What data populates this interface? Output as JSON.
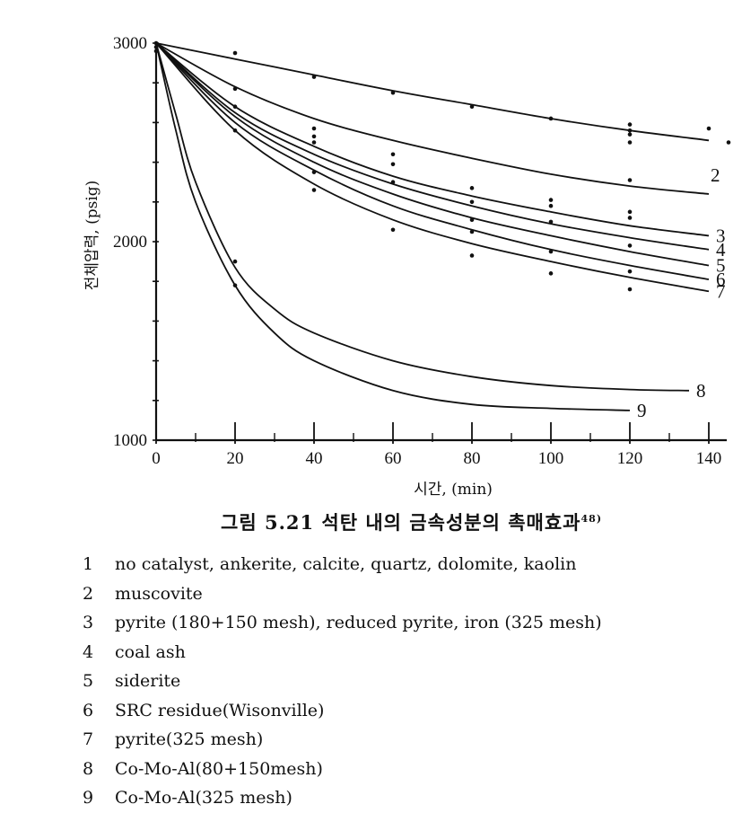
{
  "chart_data": {
    "type": "line",
    "xlabel": "시간, (min)",
    "ylabel": "전체압력, (psig)",
    "x_ticks": [
      0,
      20,
      40,
      60,
      80,
      100,
      120,
      140
    ],
    "y_ticks": [
      1000,
      2000,
      3000
    ],
    "xlim": [
      0,
      145
    ],
    "ylim": [
      1000,
      3000
    ],
    "grid": false,
    "series": [
      {
        "name": "1",
        "x": [
          0,
          20,
          40,
          60,
          80,
          100,
          120,
          140
        ],
        "y": [
          3000,
          2920,
          2840,
          2760,
          2690,
          2620,
          2560,
          2510
        ]
      },
      {
        "name": "2",
        "x": [
          0,
          20,
          40,
          60,
          80,
          100,
          120,
          140
        ],
        "y": [
          3000,
          2780,
          2620,
          2510,
          2420,
          2340,
          2280,
          2240
        ]
      },
      {
        "name": "3",
        "x": [
          0,
          20,
          40,
          60,
          80,
          100,
          120,
          140
        ],
        "y": [
          3000,
          2680,
          2480,
          2330,
          2230,
          2150,
          2080,
          2030
        ]
      },
      {
        "name": "4",
        "x": [
          0,
          20,
          40,
          60,
          80,
          100,
          120,
          140
        ],
        "y": [
          3000,
          2650,
          2440,
          2290,
          2180,
          2090,
          2020,
          1960
        ]
      },
      {
        "name": "5",
        "x": [
          0,
          20,
          40,
          60,
          80,
          100,
          120,
          140
        ],
        "y": [
          3000,
          2630,
          2400,
          2240,
          2120,
          2030,
          1950,
          1880
        ]
      },
      {
        "name": "6",
        "x": [
          0,
          20,
          40,
          60,
          80,
          100,
          120,
          140
        ],
        "y": [
          3000,
          2600,
          2360,
          2180,
          2060,
          1960,
          1880,
          1810
        ]
      },
      {
        "name": "7",
        "x": [
          0,
          20,
          40,
          60,
          80,
          100,
          120,
          140
        ],
        "y": [
          3000,
          2560,
          2290,
          2110,
          1990,
          1900,
          1820,
          1750
        ]
      },
      {
        "name": "8",
        "x": [
          0,
          5,
          10,
          20,
          30,
          40,
          60,
          80,
          100,
          120,
          135
        ],
        "y": [
          3000,
          2640,
          2300,
          1870,
          1660,
          1540,
          1400,
          1320,
          1275,
          1255,
          1250
        ]
      },
      {
        "name": "9",
        "x": [
          0,
          5,
          10,
          20,
          30,
          40,
          60,
          80,
          100,
          120
        ],
        "y": [
          3000,
          2560,
          2200,
          1780,
          1540,
          1400,
          1250,
          1180,
          1160,
          1150
        ]
      }
    ],
    "points": [
      [
        0,
        3000
      ],
      [
        0,
        2980
      ],
      [
        0,
        2960
      ],
      [
        20,
        2950
      ],
      [
        20,
        2770
      ],
      [
        20,
        2680
      ],
      [
        20,
        2560
      ],
      [
        20,
        1900
      ],
      [
        20,
        1780
      ],
      [
        40,
        2830
      ],
      [
        40,
        2570
      ],
      [
        40,
        2530
      ],
      [
        40,
        2500
      ],
      [
        40,
        2350
      ],
      [
        40,
        2260
      ],
      [
        60,
        2750
      ],
      [
        60,
        2440
      ],
      [
        60,
        2390
      ],
      [
        60,
        2300
      ],
      [
        60,
        2060
      ],
      [
        80,
        2680
      ],
      [
        80,
        2270
      ],
      [
        80,
        2200
      ],
      [
        80,
        2110
      ],
      [
        80,
        2050
      ],
      [
        80,
        1930
      ],
      [
        100,
        2620
      ],
      [
        100,
        2210
      ],
      [
        100,
        2180
      ],
      [
        100,
        2100
      ],
      [
        100,
        1950
      ],
      [
        100,
        1840
      ],
      [
        120,
        2590
      ],
      [
        120,
        2560
      ],
      [
        120,
        2540
      ],
      [
        120,
        2500
      ],
      [
        120,
        2310
      ],
      [
        120,
        2150
      ],
      [
        120,
        2120
      ],
      [
        120,
        1980
      ],
      [
        120,
        1850
      ],
      [
        120,
        1760
      ],
      [
        140,
        2570
      ],
      [
        145,
        2500
      ]
    ]
  },
  "figure": {
    "caption": "그림 5.21  석탄 내의 금속성분의 촉매효과",
    "caption_ref": "48)"
  },
  "legend": [
    {
      "num": "1",
      "text": "no catalyst,  ankerite,  calcite,  quartz,  dolomite,  kaolin"
    },
    {
      "num": "2",
      "text": "muscovite"
    },
    {
      "num": "3",
      "text": "pyrite  (180+150 mesh),  reduced pyrite,  iron  (325 mesh)"
    },
    {
      "num": "4",
      "text": "coal ash"
    },
    {
      "num": "5",
      "text": "siderite"
    },
    {
      "num": "6",
      "text": "SRC residue(Wisonville)"
    },
    {
      "num": "7",
      "text": "pyrite(325  mesh)"
    },
    {
      "num": "8",
      "text": "Co-Mo-Al(80+150mesh)"
    },
    {
      "num": "9",
      "text": "Co-Mo-Al(325  mesh)"
    }
  ]
}
